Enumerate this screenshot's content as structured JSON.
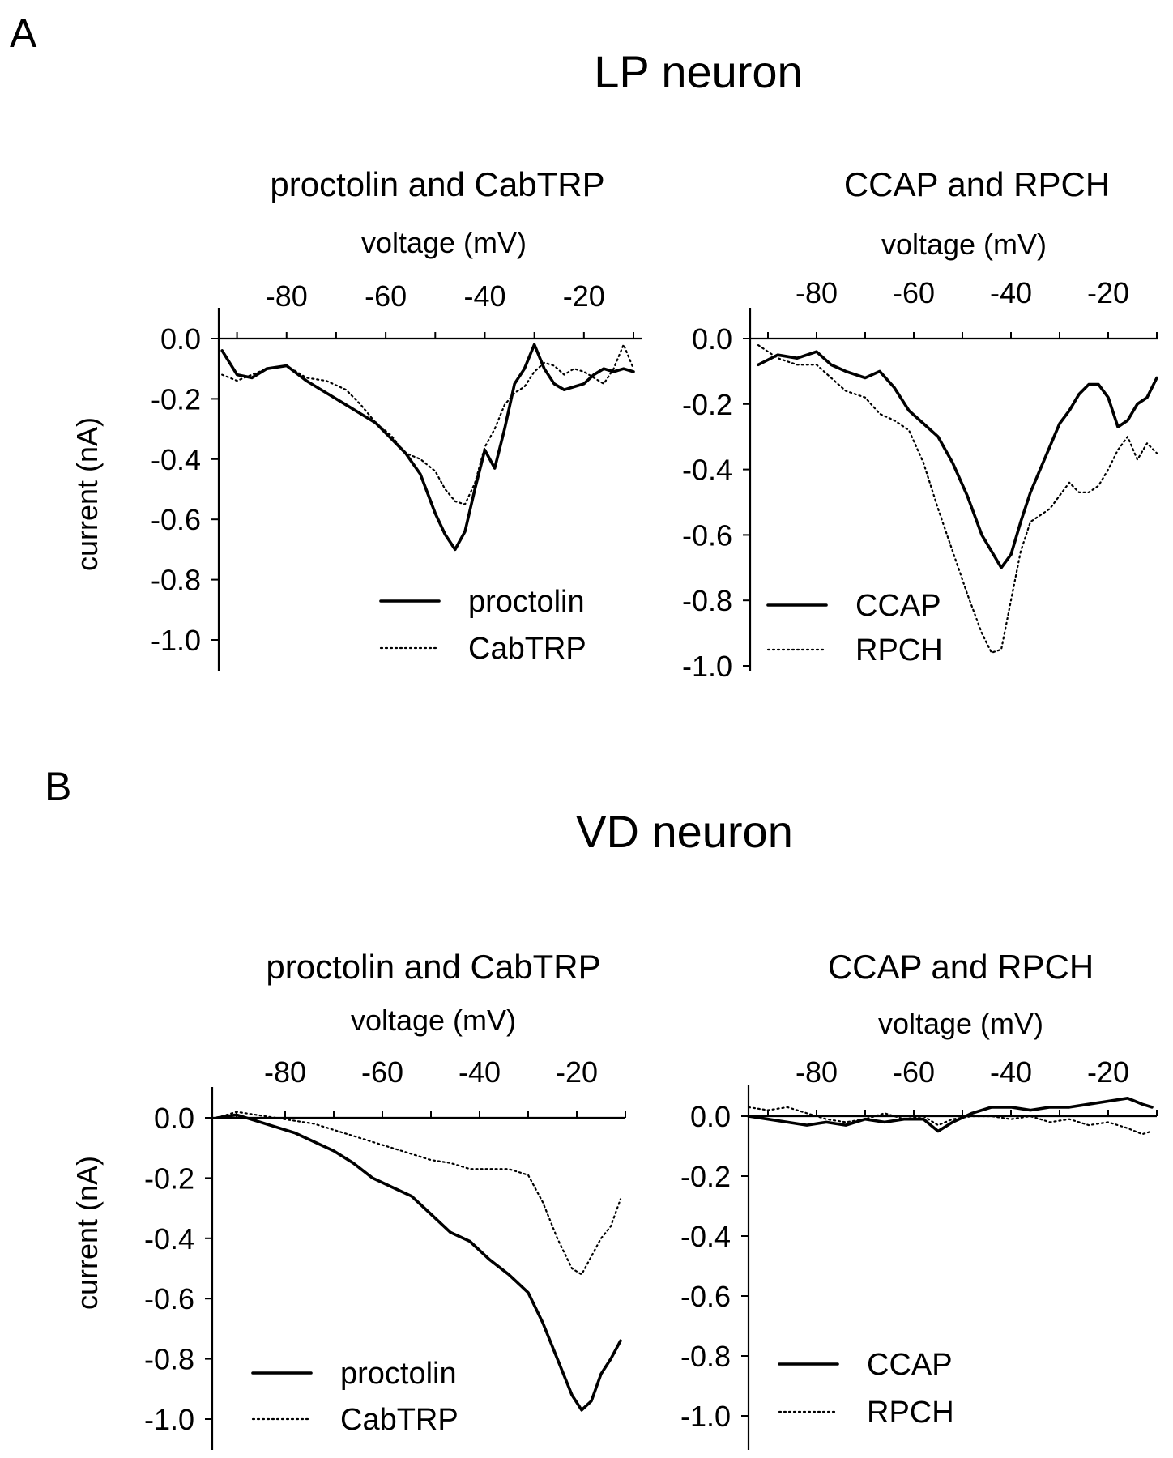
{
  "figure": {
    "panels": [
      {
        "letter": "A",
        "title": "LP neuron"
      },
      {
        "letter": "B",
        "title": "VD neuron"
      }
    ]
  },
  "chart_data": [
    {
      "type": "line",
      "panel": "A",
      "title": "proctolin and CabTRP",
      "xlabel": "voltage (mV)",
      "ylabel": "current (nA)",
      "xlim": [
        -95,
        -10
      ],
      "ylim": [
        -1.0,
        0.0
      ],
      "xticks": [
        -80,
        -60,
        -40,
        -20
      ],
      "yticks": [
        0.0,
        -0.2,
        -0.4,
        -0.6,
        -0.8,
        -1.0
      ],
      "xtick_labels": [
        "-80",
        "-60",
        "-40",
        "-20"
      ],
      "ytick_labels": [
        "0.0",
        "-0.2",
        "-0.4",
        "-0.6",
        "-0.8",
        "-1.0"
      ],
      "axis_position": "top",
      "legend_position": "bottom-right",
      "series": [
        {
          "name": "proctolin",
          "style": "solid",
          "x": [
            -93,
            -90,
            -87,
            -84,
            -80,
            -76,
            -72,
            -68,
            -65,
            -62,
            -59,
            -56,
            -53,
            -50,
            -48,
            -46,
            -44,
            -42,
            -40,
            -38,
            -36,
            -34,
            -32,
            -30,
            -28,
            -26,
            -24,
            -22,
            -20,
            -18,
            -16,
            -14,
            -12,
            -10
          ],
          "y": [
            -0.04,
            -0.12,
            -0.13,
            -0.1,
            -0.09,
            -0.14,
            -0.18,
            -0.22,
            -0.25,
            -0.28,
            -0.33,
            -0.38,
            -0.45,
            -0.58,
            -0.65,
            -0.7,
            -0.64,
            -0.5,
            -0.37,
            -0.43,
            -0.3,
            -0.15,
            -0.1,
            -0.02,
            -0.1,
            -0.15,
            -0.17,
            -0.16,
            -0.15,
            -0.12,
            -0.1,
            -0.11,
            -0.1,
            -0.11
          ]
        },
        {
          "name": "CabTRP",
          "style": "dotted",
          "x": [
            -93,
            -90,
            -87,
            -84,
            -80,
            -76,
            -72,
            -68,
            -65,
            -62,
            -59,
            -56,
            -53,
            -50,
            -48,
            -46,
            -44,
            -42,
            -40,
            -38,
            -36,
            -34,
            -32,
            -30,
            -28,
            -26,
            -24,
            -22,
            -20,
            -18,
            -16,
            -14,
            -12,
            -10
          ],
          "y": [
            -0.12,
            -0.14,
            -0.12,
            -0.1,
            -0.09,
            -0.13,
            -0.14,
            -0.17,
            -0.22,
            -0.28,
            -0.32,
            -0.38,
            -0.4,
            -0.44,
            -0.5,
            -0.54,
            -0.55,
            -0.48,
            -0.36,
            -0.3,
            -0.22,
            -0.18,
            -0.16,
            -0.11,
            -0.08,
            -0.09,
            -0.12,
            -0.1,
            -0.11,
            -0.13,
            -0.15,
            -0.1,
            -0.02,
            -0.1
          ]
        }
      ]
    },
    {
      "type": "line",
      "panel": "A",
      "title": "CCAP and RPCH",
      "xlabel": "voltage (mV)",
      "ylabel": "",
      "xlim": [
        -95,
        -10
      ],
      "ylim": [
        -1.0,
        0.0
      ],
      "xticks": [
        -80,
        -60,
        -40,
        -20
      ],
      "yticks": [
        0.0,
        -0.2,
        -0.4,
        -0.6,
        -0.8,
        -1.0
      ],
      "xtick_labels": [
        "-80",
        "-60",
        "-40",
        "-20"
      ],
      "ytick_labels": [
        "0.0",
        "-0.2",
        "-0.4",
        "-0.6",
        "-0.8",
        "-1.0"
      ],
      "axis_position": "top",
      "legend_position": "bottom-left",
      "series": [
        {
          "name": "CCAP",
          "style": "solid",
          "x": [
            -92,
            -88,
            -84,
            -80,
            -77,
            -74,
            -70,
            -67,
            -64,
            -61,
            -58,
            -55,
            -52,
            -49,
            -46,
            -44,
            -42,
            -40,
            -38,
            -36,
            -34,
            -32,
            -30,
            -28,
            -26,
            -24,
            -22,
            -20,
            -18,
            -16,
            -14,
            -12,
            -10
          ],
          "y": [
            -0.08,
            -0.05,
            -0.06,
            -0.04,
            -0.08,
            -0.1,
            -0.12,
            -0.1,
            -0.15,
            -0.22,
            -0.26,
            -0.3,
            -0.38,
            -0.48,
            -0.6,
            -0.65,
            -0.7,
            -0.66,
            -0.56,
            -0.47,
            -0.4,
            -0.33,
            -0.26,
            -0.22,
            -0.17,
            -0.14,
            -0.14,
            -0.18,
            -0.27,
            -0.25,
            -0.2,
            -0.18,
            -0.12
          ]
        },
        {
          "name": "RPCH",
          "style": "dotted",
          "x": [
            -92,
            -88,
            -84,
            -80,
            -77,
            -74,
            -70,
            -67,
            -64,
            -61,
            -58,
            -55,
            -52,
            -49,
            -46,
            -44,
            -42,
            -40,
            -38,
            -36,
            -34,
            -32,
            -30,
            -28,
            -26,
            -24,
            -22,
            -20,
            -18,
            -16,
            -14,
            -12,
            -10
          ],
          "y": [
            -0.02,
            -0.06,
            -0.08,
            -0.08,
            -0.12,
            -0.16,
            -0.18,
            -0.23,
            -0.25,
            -0.28,
            -0.38,
            -0.52,
            -0.65,
            -0.78,
            -0.9,
            -0.96,
            -0.95,
            -0.8,
            -0.65,
            -0.56,
            -0.54,
            -0.52,
            -0.48,
            -0.44,
            -0.47,
            -0.47,
            -0.45,
            -0.4,
            -0.34,
            -0.3,
            -0.37,
            -0.32,
            -0.35
          ]
        }
      ]
    },
    {
      "type": "line",
      "panel": "B",
      "title": "proctolin and CabTRP",
      "xlabel": "voltage (mV)",
      "ylabel": "current (nA)",
      "xlim": [
        -95,
        -10
      ],
      "ylim": [
        -1.0,
        0.0
      ],
      "xticks": [
        -80,
        -60,
        -40,
        -20
      ],
      "yticks": [
        0.0,
        -0.2,
        -0.4,
        -0.6,
        -0.8,
        -1.0
      ],
      "xtick_labels": [
        "-80",
        "-60",
        "-40",
        "-20"
      ],
      "ytick_labels": [
        "0.0",
        "-0.2",
        "-0.4",
        "-0.6",
        "-0.8",
        "-1.0"
      ],
      "axis_position": "top",
      "legend_position": "bottom-left",
      "series": [
        {
          "name": "proctolin",
          "style": "solid",
          "x": [
            -94,
            -90,
            -86,
            -82,
            -78,
            -74,
            -70,
            -66,
            -62,
            -58,
            -54,
            -50,
            -46,
            -42,
            -38,
            -34,
            -30,
            -27,
            -24,
            -21,
            -19,
            -17,
            -15,
            -13,
            -11
          ],
          "y": [
            0.0,
            0.01,
            -0.01,
            -0.03,
            -0.05,
            -0.08,
            -0.11,
            -0.15,
            -0.2,
            -0.23,
            -0.26,
            -0.32,
            -0.38,
            -0.41,
            -0.47,
            -0.52,
            -0.58,
            -0.68,
            -0.8,
            -0.92,
            -0.97,
            -0.94,
            -0.85,
            -0.8,
            -0.74
          ]
        },
        {
          "name": "CabTRP",
          "style": "dotted",
          "x": [
            -94,
            -90,
            -86,
            -82,
            -78,
            -74,
            -70,
            -66,
            -62,
            -58,
            -54,
            -50,
            -46,
            -42,
            -38,
            -34,
            -30,
            -27,
            -24,
            -21,
            -19,
            -17,
            -15,
            -13,
            -11
          ],
          "y": [
            0.0,
            0.02,
            0.01,
            0.0,
            -0.01,
            -0.02,
            -0.04,
            -0.06,
            -0.08,
            -0.1,
            -0.12,
            -0.14,
            -0.15,
            -0.17,
            -0.17,
            -0.17,
            -0.19,
            -0.28,
            -0.4,
            -0.5,
            -0.52,
            -0.46,
            -0.4,
            -0.36,
            -0.27
          ]
        }
      ]
    },
    {
      "type": "line",
      "panel": "B",
      "title": "CCAP and RPCH",
      "xlabel": "voltage (mV)",
      "ylabel": "",
      "xlim": [
        -95,
        -10
      ],
      "ylim": [
        -1.0,
        0.0
      ],
      "xticks": [
        -80,
        -60,
        -40,
        -20
      ],
      "yticks": [
        0.0,
        -0.2,
        -0.4,
        -0.6,
        -0.8,
        -1.0
      ],
      "xtick_labels": [
        "-80",
        "-60",
        "-40",
        "-20"
      ],
      "ytick_labels": [
        "0.0",
        "-0.2",
        "-0.4",
        "-0.6",
        "-0.8",
        "-1.0"
      ],
      "axis_position": "top",
      "legend_position": "bottom-left",
      "series": [
        {
          "name": "CCAP",
          "style": "solid",
          "x": [
            -94,
            -90,
            -86,
            -82,
            -78,
            -74,
            -70,
            -66,
            -62,
            -58,
            -55,
            -52,
            -48,
            -44,
            -40,
            -36,
            -32,
            -28,
            -24,
            -20,
            -16,
            -13,
            -11
          ],
          "y": [
            0.0,
            -0.01,
            -0.02,
            -0.03,
            -0.02,
            -0.03,
            -0.01,
            -0.02,
            -0.01,
            -0.01,
            -0.05,
            -0.02,
            0.01,
            0.03,
            0.03,
            0.02,
            0.03,
            0.03,
            0.04,
            0.05,
            0.06,
            0.04,
            0.03
          ]
        },
        {
          "name": "RPCH",
          "style": "dotted",
          "x": [
            -94,
            -90,
            -86,
            -82,
            -78,
            -74,
            -70,
            -66,
            -62,
            -58,
            -55,
            -52,
            -48,
            -44,
            -40,
            -36,
            -32,
            -28,
            -24,
            -20,
            -16,
            -13,
            -11
          ],
          "y": [
            0.03,
            0.02,
            0.03,
            0.01,
            -0.01,
            -0.02,
            -0.01,
            0.01,
            -0.01,
            0.0,
            -0.03,
            -0.01,
            0.0,
            0.0,
            -0.01,
            0.0,
            -0.02,
            -0.01,
            -0.03,
            -0.02,
            -0.04,
            -0.06,
            -0.05
          ]
        }
      ]
    }
  ]
}
